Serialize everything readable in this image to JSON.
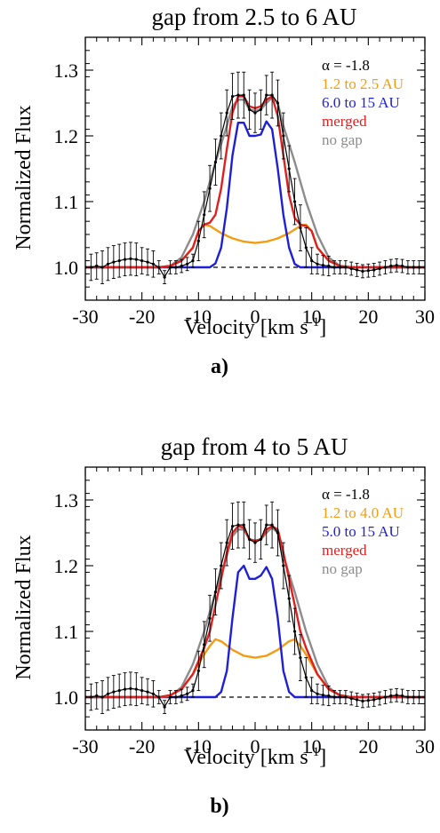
{
  "chart_data": [
    {
      "type": "line",
      "title": "gap from 2.5 to 6 AU",
      "panel_label": "a)",
      "xlabel_main": "Velocity [km s",
      "xlabel_sup": "-1",
      "xlabel_close": "]",
      "ylabel": "Normalized Flux",
      "xlim": [
        -30,
        30
      ],
      "ylim": [
        0.95,
        1.35
      ],
      "xticks": [
        -30,
        -20,
        -10,
        0,
        10,
        20,
        30
      ],
      "yticks": [
        1.0,
        1.1,
        1.2,
        1.3
      ],
      "ytick_labels": [
        "1.0",
        "1.1",
        "1.2",
        "1.3"
      ],
      "reference_line": {
        "y": 1.0,
        "style": "dashed"
      },
      "legend_position": "top-right",
      "legend": [
        {
          "text": "α = -1.8",
          "color": "#000000"
        },
        {
          "text": "1.2 to 2.5 AU",
          "color": "#f39c12"
        },
        {
          "text": "6.0 to 15  AU",
          "color": "#1f1fd6"
        },
        {
          "text": "merged",
          "color": "#e02020"
        },
        {
          "text": "no gap",
          "color": "#8c8c8c"
        }
      ],
      "series": [
        {
          "key": "inner",
          "color": "#f39c12",
          "x": [
            -30,
            -20,
            -17,
            -15,
            -13,
            -11,
            -10,
            -9,
            -8,
            -6,
            -4,
            -2,
            0,
            2,
            4,
            6,
            8,
            9,
            10,
            11,
            13,
            15,
            17,
            20,
            30
          ],
          "y": [
            1.0,
            1.0,
            1.0,
            1.002,
            1.01,
            1.03,
            1.055,
            1.065,
            1.063,
            1.052,
            1.044,
            1.039,
            1.037,
            1.039,
            1.044,
            1.052,
            1.063,
            1.065,
            1.055,
            1.03,
            1.01,
            1.002,
            1.0,
            1.0,
            1.0
          ]
        },
        {
          "key": "outer",
          "color": "#1f1fd6",
          "x": [
            -30,
            -8,
            -7,
            -6,
            -5,
            -4,
            -3,
            -2,
            -1,
            0,
            1,
            2,
            3,
            4,
            5,
            6,
            7,
            8,
            30
          ],
          "y": [
            1.0,
            1.0,
            1.006,
            1.03,
            1.09,
            1.17,
            1.22,
            1.22,
            1.2,
            1.2,
            1.202,
            1.222,
            1.21,
            1.15,
            1.08,
            1.03,
            1.005,
            1.0,
            1.0
          ]
        },
        {
          "key": "nogap",
          "color": "#8c8c8c",
          "x": [
            -30,
            -17,
            -15,
            -13,
            -11,
            -9,
            -7,
            -5,
            -4,
            -3,
            -2,
            -1,
            0,
            1,
            2,
            3,
            4,
            5,
            7,
            9,
            11,
            13,
            15,
            17,
            30
          ],
          "y": [
            1.0,
            1.0,
            1.002,
            1.015,
            1.05,
            1.1,
            1.16,
            1.215,
            1.245,
            1.255,
            1.255,
            1.24,
            1.238,
            1.24,
            1.25,
            1.258,
            1.25,
            1.215,
            1.16,
            1.1,
            1.05,
            1.015,
            1.002,
            1.0,
            1.0
          ]
        },
        {
          "key": "merged",
          "color": "#e02020",
          "x": [
            -30,
            -17,
            -15,
            -13,
            -11,
            -10,
            -9,
            -8,
            -7,
            -6,
            -5,
            -4,
            -3,
            -2,
            -1,
            0,
            1,
            2,
            3,
            4,
            5,
            6,
            7,
            8,
            9,
            10,
            11,
            13,
            15,
            17,
            30
          ],
          "y": [
            1.0,
            1.0,
            1.002,
            1.01,
            1.03,
            1.055,
            1.065,
            1.068,
            1.08,
            1.12,
            1.18,
            1.235,
            1.26,
            1.26,
            1.245,
            1.242,
            1.245,
            1.255,
            1.26,
            1.23,
            1.17,
            1.11,
            1.075,
            1.065,
            1.063,
            1.055,
            1.03,
            1.01,
            1.002,
            1.0,
            1.0
          ]
        }
      ],
      "observed": {
        "color": "#000000",
        "x": [
          -30,
          -29,
          -28,
          -27,
          -26,
          -25,
          -24,
          -23,
          -22,
          -21,
          -20,
          -19,
          -18,
          -17,
          -16,
          -15,
          -14,
          -13,
          -12,
          -11,
          -10,
          -9,
          -8,
          -7,
          -6,
          -5,
          -4,
          -3,
          -2,
          -1,
          0,
          1,
          2,
          3,
          4,
          5,
          6,
          7,
          8,
          9,
          10,
          11,
          12,
          13,
          14,
          15,
          16,
          17,
          18,
          19,
          20,
          21,
          22,
          23,
          24,
          25,
          26,
          27,
          28,
          29,
          30
        ],
        "y": [
          1.0,
          1.0,
          1.002,
          1.0,
          1.005,
          1.008,
          1.01,
          1.012,
          1.013,
          1.012,
          1.01,
          1.008,
          1.005,
          1.0,
          0.985,
          1.0,
          1.0,
          1.002,
          1.005,
          1.01,
          1.04,
          1.08,
          1.12,
          1.16,
          1.2,
          1.235,
          1.26,
          1.262,
          1.262,
          1.24,
          1.235,
          1.24,
          1.262,
          1.262,
          1.25,
          1.2,
          1.15,
          1.1,
          1.06,
          1.03,
          1.01,
          1.005,
          1.003,
          1.002,
          1.0,
          1.0,
          1.0,
          0.998,
          0.996,
          0.994,
          0.995,
          0.996,
          0.998,
          1.0,
          1.002,
          1.003,
          1.002,
          1.0,
          1.0,
          1.0,
          1.0
        ],
        "err": [
          0.01,
          0.02,
          0.02,
          0.025,
          0.025,
          0.025,
          0.025,
          0.025,
          0.025,
          0.025,
          0.02,
          0.02,
          0.02,
          0.01,
          0.01,
          0.01,
          0.01,
          0.01,
          0.01,
          0.01,
          0.03,
          0.035,
          0.035,
          0.035,
          0.035,
          0.035,
          0.035,
          0.035,
          0.035,
          0.03,
          0.03,
          0.03,
          0.03,
          0.035,
          0.035,
          0.035,
          0.035,
          0.035,
          0.035,
          0.03,
          0.02,
          0.015,
          0.015,
          0.015,
          0.01,
          0.01,
          0.01,
          0.01,
          0.01,
          0.01,
          0.01,
          0.01,
          0.01,
          0.01,
          0.01,
          0.01,
          0.01,
          0.01,
          0.01,
          0.01,
          0.01
        ]
      }
    },
    {
      "type": "line",
      "title": "gap from 4 to 5 AU",
      "panel_label": "b)",
      "xlabel_main": "Velocity [km s",
      "xlabel_sup": "-1",
      "xlabel_close": "]",
      "ylabel": "Normalized Flux",
      "xlim": [
        -30,
        30
      ],
      "ylim": [
        0.95,
        1.35
      ],
      "xticks": [
        -30,
        -20,
        -10,
        0,
        10,
        20,
        30
      ],
      "yticks": [
        1.0,
        1.1,
        1.2,
        1.3
      ],
      "ytick_labels": [
        "1.0",
        "1.1",
        "1.2",
        "1.3"
      ],
      "reference_line": {
        "y": 1.0,
        "style": "dashed"
      },
      "legend_position": "top-right",
      "legend": [
        {
          "text": "α = -1.8",
          "color": "#000000"
        },
        {
          "text": "1.2 to 4.0 AU",
          "color": "#f39c12"
        },
        {
          "text": "5.0 to 15  AU",
          "color": "#1f1fd6"
        },
        {
          "text": "merged",
          "color": "#e02020"
        },
        {
          "text": "no gap",
          "color": "#8c8c8c"
        }
      ],
      "series": [
        {
          "key": "inner",
          "color": "#f39c12",
          "x": [
            -30,
            -17,
            -15,
            -13,
            -11,
            -9,
            -8,
            -7,
            -6,
            -4,
            -2,
            0,
            2,
            4,
            6,
            7,
            8,
            9,
            11,
            13,
            15,
            17,
            30
          ],
          "y": [
            1.0,
            1.0,
            1.003,
            1.012,
            1.035,
            1.065,
            1.078,
            1.088,
            1.085,
            1.072,
            1.063,
            1.06,
            1.063,
            1.072,
            1.085,
            1.088,
            1.078,
            1.065,
            1.035,
            1.012,
            1.003,
            1.0,
            1.0
          ]
        },
        {
          "key": "outer",
          "color": "#1f1fd6",
          "x": [
            -30,
            -7,
            -6,
            -5,
            -4,
            -3,
            -2,
            -1,
            0,
            1,
            2,
            3,
            4,
            5,
            6,
            7,
            30
          ],
          "y": [
            1.0,
            1.0,
            1.008,
            1.04,
            1.12,
            1.19,
            1.2,
            1.18,
            1.18,
            1.185,
            1.198,
            1.18,
            1.12,
            1.04,
            1.008,
            1.0,
            1.0
          ]
        },
        {
          "key": "nogap",
          "color": "#8c8c8c",
          "x": [
            -30,
            -17,
            -15,
            -13,
            -11,
            -9,
            -7,
            -5,
            -4,
            -3,
            -2,
            -1,
            0,
            1,
            2,
            3,
            4,
            5,
            7,
            9,
            11,
            13,
            15,
            17,
            30
          ],
          "y": [
            1.0,
            1.0,
            1.002,
            1.015,
            1.05,
            1.1,
            1.16,
            1.215,
            1.245,
            1.255,
            1.255,
            1.24,
            1.238,
            1.24,
            1.25,
            1.258,
            1.25,
            1.215,
            1.16,
            1.1,
            1.05,
            1.015,
            1.002,
            1.0,
            1.0
          ]
        },
        {
          "key": "merged",
          "color": "#e02020",
          "x": [
            -30,
            -17,
            -15,
            -13,
            -11,
            -9,
            -8,
            -7,
            -6,
            -5,
            -4,
            -3,
            -2,
            -1,
            0,
            1,
            2,
            3,
            4,
            5,
            6,
            7,
            8,
            9,
            11,
            13,
            15,
            17,
            30
          ],
          "y": [
            1.0,
            1.0,
            1.003,
            1.012,
            1.035,
            1.075,
            1.1,
            1.14,
            1.18,
            1.22,
            1.25,
            1.26,
            1.258,
            1.24,
            1.238,
            1.24,
            1.255,
            1.26,
            1.255,
            1.22,
            1.18,
            1.14,
            1.1,
            1.075,
            1.035,
            1.012,
            1.003,
            1.0,
            1.0
          ]
        }
      ],
      "observed": {
        "color": "#000000",
        "x": [
          -30,
          -29,
          -28,
          -27,
          -26,
          -25,
          -24,
          -23,
          -22,
          -21,
          -20,
          -19,
          -18,
          -17,
          -16,
          -15,
          -14,
          -13,
          -12,
          -11,
          -10,
          -9,
          -8,
          -7,
          -6,
          -5,
          -4,
          -3,
          -2,
          -1,
          0,
          1,
          2,
          3,
          4,
          5,
          6,
          7,
          8,
          9,
          10,
          11,
          12,
          13,
          14,
          15,
          16,
          17,
          18,
          19,
          20,
          21,
          22,
          23,
          24,
          25,
          26,
          27,
          28,
          29,
          30
        ],
        "y": [
          1.0,
          1.0,
          1.002,
          1.0,
          1.005,
          1.008,
          1.01,
          1.012,
          1.013,
          1.012,
          1.01,
          1.008,
          1.005,
          1.0,
          0.985,
          1.0,
          1.0,
          1.002,
          1.005,
          1.01,
          1.04,
          1.08,
          1.12,
          1.16,
          1.2,
          1.235,
          1.26,
          1.262,
          1.262,
          1.24,
          1.235,
          1.24,
          1.262,
          1.262,
          1.25,
          1.2,
          1.15,
          1.1,
          1.06,
          1.03,
          1.01,
          1.005,
          1.003,
          1.002,
          1.0,
          1.0,
          1.0,
          0.998,
          0.996,
          0.994,
          0.995,
          0.996,
          0.998,
          1.0,
          1.002,
          1.003,
          1.002,
          1.0,
          1.0,
          1.0,
          1.0
        ],
        "err": [
          0.01,
          0.02,
          0.02,
          0.025,
          0.025,
          0.025,
          0.025,
          0.025,
          0.025,
          0.025,
          0.02,
          0.02,
          0.02,
          0.01,
          0.01,
          0.01,
          0.01,
          0.01,
          0.01,
          0.01,
          0.03,
          0.035,
          0.035,
          0.035,
          0.035,
          0.035,
          0.035,
          0.035,
          0.035,
          0.03,
          0.03,
          0.03,
          0.03,
          0.035,
          0.035,
          0.035,
          0.035,
          0.035,
          0.035,
          0.03,
          0.02,
          0.015,
          0.015,
          0.015,
          0.01,
          0.01,
          0.01,
          0.01,
          0.01,
          0.01,
          0.01,
          0.01,
          0.01,
          0.01,
          0.01,
          0.01,
          0.01,
          0.01,
          0.01,
          0.01,
          0.01
        ]
      }
    }
  ]
}
